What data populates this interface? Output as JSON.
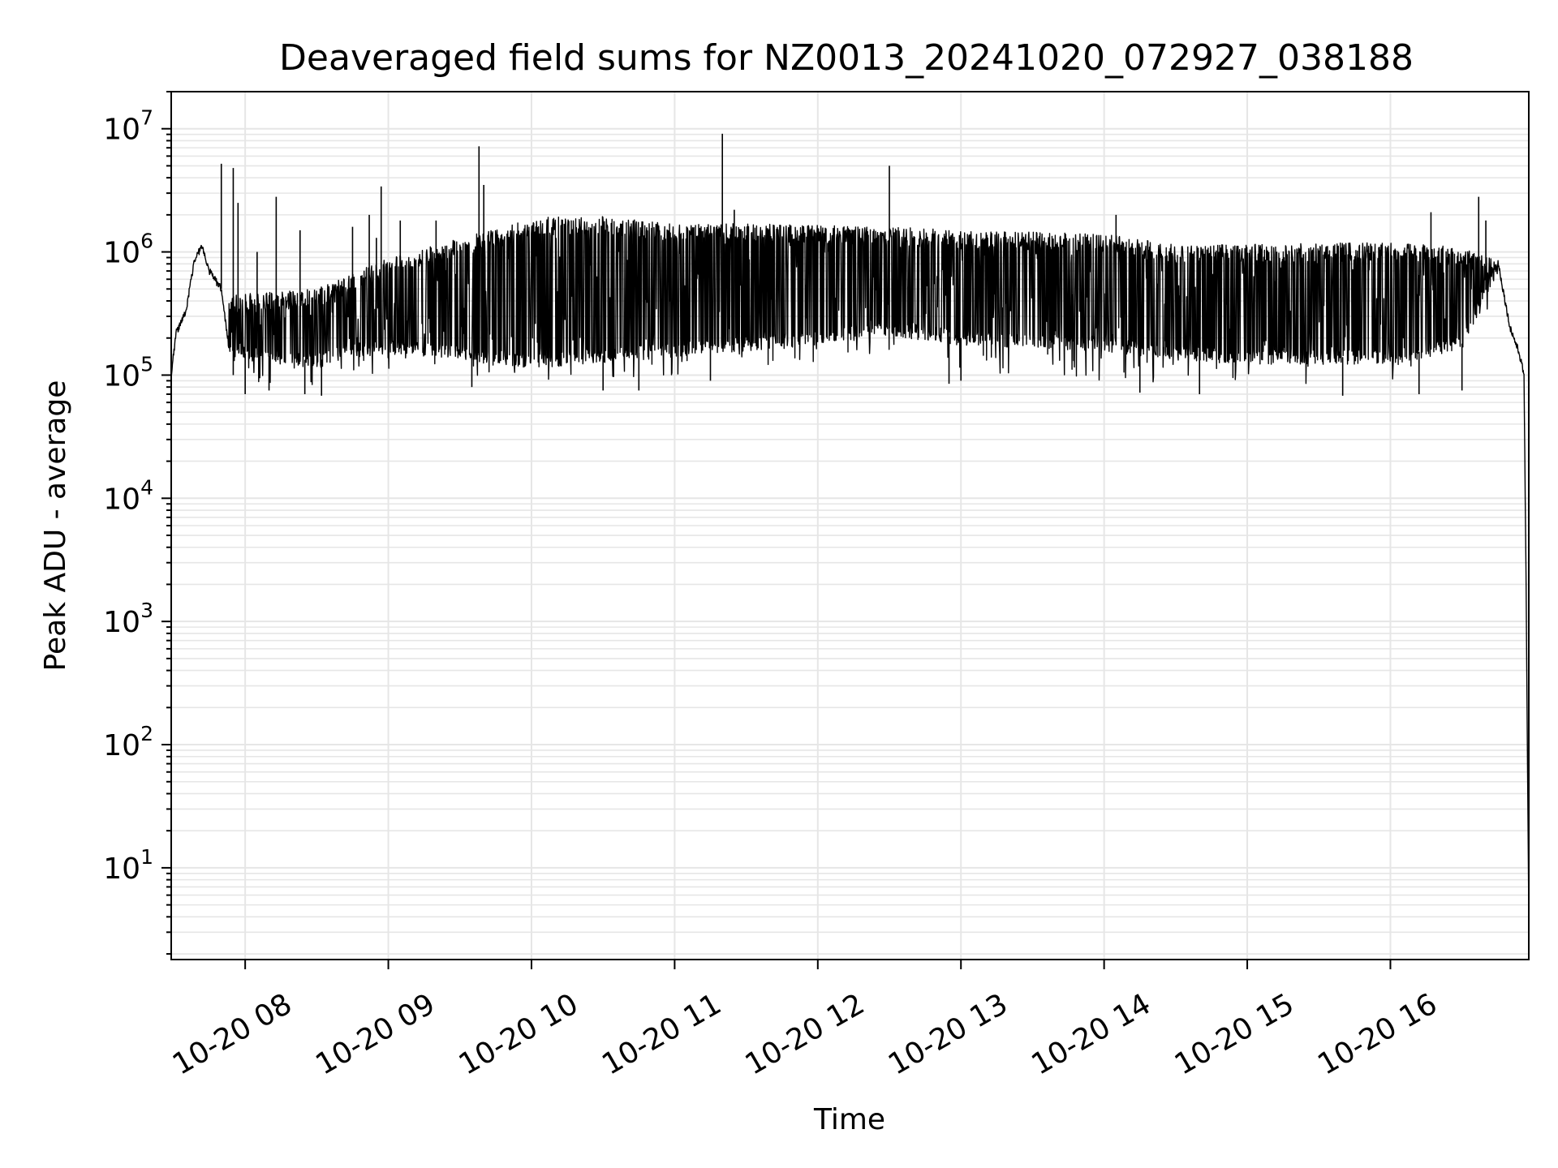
{
  "chart_data": {
    "type": "line",
    "title": "Deaveraged field sums for NZ0013_20241020_072927_038188",
    "xlabel": "Time",
    "ylabel": "Peak ADU - average",
    "yscale": "log",
    "grid": true,
    "line_color": "#000000",
    "grid_color": "#e6e6e6",
    "xlim": [
      "2024-10-20 07:29",
      "2024-10-20 16:58"
    ],
    "ylim": [
      1.8,
      20000000
    ],
    "x_ticks": [
      {
        "value": "2024-10-20 08:00",
        "label": "10-20 08"
      },
      {
        "value": "2024-10-20 09:00",
        "label": "10-20 09"
      },
      {
        "value": "2024-10-20 10:00",
        "label": "10-20 10"
      },
      {
        "value": "2024-10-20 11:00",
        "label": "10-20 11"
      },
      {
        "value": "2024-10-20 12:00",
        "label": "10-20 12"
      },
      {
        "value": "2024-10-20 13:00",
        "label": "10-20 13"
      },
      {
        "value": "2024-10-20 14:00",
        "label": "10-20 14"
      },
      {
        "value": "2024-10-20 15:00",
        "label": "10-20 15"
      },
      {
        "value": "2024-10-20 16:00",
        "label": "10-20 16"
      }
    ],
    "y_ticks": [
      {
        "value": 10,
        "base": "10",
        "exp": "1"
      },
      {
        "value": 100,
        "base": "10",
        "exp": "2"
      },
      {
        "value": 1000,
        "base": "10",
        "exp": "3"
      },
      {
        "value": 10000,
        "base": "10",
        "exp": "4"
      },
      {
        "value": 100000,
        "base": "10",
        "exp": "5"
      },
      {
        "value": 1000000,
        "base": "10",
        "exp": "6"
      },
      {
        "value": 10000000,
        "base": "10",
        "exp": "7"
      }
    ],
    "series": [
      {
        "baseline": [
          {
            "x": "2024-10-20 07:29",
            "y": 100000
          },
          {
            "x": "2024-10-20 07:31",
            "y": 220000
          },
          {
            "x": "2024-10-20 07:35",
            "y": 320000
          },
          {
            "x": "2024-10-20 07:39",
            "y": 900000
          },
          {
            "x": "2024-10-20 07:42",
            "y": 1100000
          },
          {
            "x": "2024-10-20 07:45",
            "y": 700000
          },
          {
            "x": "2024-10-20 07:50",
            "y": 500000
          },
          {
            "x": "2024-10-20 07:53",
            "y": 180000
          },
          {
            "x": "2024-10-20 08:00",
            "y": 150000
          },
          {
            "x": "2024-10-20 08:30",
            "y": 130000
          },
          {
            "x": "2024-10-20 08:45",
            "y": 160000
          },
          {
            "x": "2024-10-20 09:00",
            "y": 170000
          },
          {
            "x": "2024-10-20 09:30",
            "y": 150000
          },
          {
            "x": "2024-10-20 09:45",
            "y": 140000
          },
          {
            "x": "2024-10-20 10:00",
            "y": 130000
          },
          {
            "x": "2024-10-20 11:00",
            "y": 160000
          },
          {
            "x": "2024-10-20 11:30",
            "y": 180000
          },
          {
            "x": "2024-10-20 12:00",
            "y": 200000
          },
          {
            "x": "2024-10-20 12:30",
            "y": 240000
          },
          {
            "x": "2024-10-20 13:00",
            "y": 200000
          },
          {
            "x": "2024-10-20 14:00",
            "y": 180000
          },
          {
            "x": "2024-10-20 14:30",
            "y": 150000
          },
          {
            "x": "2024-10-20 15:00",
            "y": 140000
          },
          {
            "x": "2024-10-20 16:00",
            "y": 140000
          },
          {
            "x": "2024-10-20 16:30",
            "y": 180000
          },
          {
            "x": "2024-10-20 16:42",
            "y": 600000
          },
          {
            "x": "2024-10-20 16:45",
            "y": 850000
          },
          {
            "x": "2024-10-20 16:50",
            "y": 250000
          },
          {
            "x": "2024-10-20 16:54",
            "y": 150000
          },
          {
            "x": "2024-10-20 16:56",
            "y": 100000
          },
          {
            "x": "2024-10-20 16:57",
            "y": 1000
          },
          {
            "x": "2024-10-20 16:58",
            "y": 4
          }
        ],
        "upper_envelope": [
          {
            "x": "2024-10-20 07:29",
            "y": 300000
          },
          {
            "x": "2024-10-20 07:53",
            "y": 450000
          },
          {
            "x": "2024-10-20 08:30",
            "y": 500000
          },
          {
            "x": "2024-10-20 09:00",
            "y": 900000
          },
          {
            "x": "2024-10-20 09:30",
            "y": 1300000
          },
          {
            "x": "2024-10-20 09:50",
            "y": 1600000
          },
          {
            "x": "2024-10-20 10:00",
            "y": 1900000
          },
          {
            "x": "2024-10-20 10:30",
            "y": 1950000
          },
          {
            "x": "2024-10-20 11:00",
            "y": 1700000
          },
          {
            "x": "2024-10-20 11:30",
            "y": 1700000
          },
          {
            "x": "2024-10-20 12:00",
            "y": 1650000
          },
          {
            "x": "2024-10-20 12:30",
            "y": 1600000
          },
          {
            "x": "2024-10-20 13:00",
            "y": 1500000
          },
          {
            "x": "2024-10-20 14:00",
            "y": 1400000
          },
          {
            "x": "2024-10-20 14:30",
            "y": 1150000
          },
          {
            "x": "2024-10-20 15:00",
            "y": 1150000
          },
          {
            "x": "2024-10-20 16:00",
            "y": 1200000
          },
          {
            "x": "2024-10-20 16:30",
            "y": 1100000
          },
          {
            "x": "2024-10-20 16:45",
            "y": 850000
          }
        ],
        "lower_envelope": [
          {
            "x": "2024-10-20 07:29",
            "y": 200000
          },
          {
            "x": "2024-10-20 07:53",
            "y": 90000
          },
          {
            "x": "2024-10-20 08:30",
            "y": 80000
          },
          {
            "x": "2024-10-20 09:00",
            "y": 110000
          },
          {
            "x": "2024-10-20 09:30",
            "y": 100000
          },
          {
            "x": "2024-10-20 10:00",
            "y": 90000
          },
          {
            "x": "2024-10-20 11:00",
            "y": 100000
          },
          {
            "x": "2024-10-20 12:00",
            "y": 120000
          },
          {
            "x": "2024-10-20 12:30",
            "y": 150000
          },
          {
            "x": "2024-10-20 13:00",
            "y": 100000
          },
          {
            "x": "2024-10-20 14:00",
            "y": 90000
          },
          {
            "x": "2024-10-20 14:30",
            "y": 80000
          },
          {
            "x": "2024-10-20 15:00",
            "y": 80000
          },
          {
            "x": "2024-10-20 16:00",
            "y": 80000
          },
          {
            "x": "2024-10-20 16:45",
            "y": 400000
          }
        ],
        "spikes": [
          {
            "x": "2024-10-20 07:50",
            "y": 5200000
          },
          {
            "x": "2024-10-20 07:55",
            "y": 4800000
          },
          {
            "x": "2024-10-20 07:57",
            "y": 2500000
          },
          {
            "x": "2024-10-20 08:05",
            "y": 1000000
          },
          {
            "x": "2024-10-20 08:13",
            "y": 2800000
          },
          {
            "x": "2024-10-20 08:21",
            "y": 400000
          },
          {
            "x": "2024-10-20 08:23",
            "y": 1500000
          },
          {
            "x": "2024-10-20 08:45",
            "y": 1600000
          },
          {
            "x": "2024-10-20 08:52",
            "y": 2000000
          },
          {
            "x": "2024-10-20 08:55",
            "y": 1300000
          },
          {
            "x": "2024-10-20 08:57",
            "y": 3400000
          },
          {
            "x": "2024-10-20 09:05",
            "y": 1800000
          },
          {
            "x": "2024-10-20 09:20",
            "y": 1800000
          },
          {
            "x": "2024-10-20 09:38",
            "y": 7200000
          },
          {
            "x": "2024-10-20 09:40",
            "y": 3500000
          },
          {
            "x": "2024-10-20 11:20",
            "y": 9100000
          },
          {
            "x": "2024-10-20 11:25",
            "y": 2200000
          },
          {
            "x": "2024-10-20 12:30",
            "y": 5000000
          },
          {
            "x": "2024-10-20 14:05",
            "y": 2000000
          },
          {
            "x": "2024-10-20 16:17",
            "y": 2100000
          },
          {
            "x": "2024-10-20 16:37",
            "y": 2800000
          },
          {
            "x": "2024-10-20 16:40",
            "y": 1800000
          }
        ],
        "dips": [
          {
            "x": "2024-10-20 07:55",
            "y": 100000
          },
          {
            "x": "2024-10-20 08:00",
            "y": 70000
          },
          {
            "x": "2024-10-20 08:10",
            "y": 75000
          },
          {
            "x": "2024-10-20 08:25",
            "y": 70000
          },
          {
            "x": "2024-10-20 08:32",
            "y": 68000
          },
          {
            "x": "2024-10-20 09:35",
            "y": 80000
          },
          {
            "x": "2024-10-20 10:30",
            "y": 75000
          },
          {
            "x": "2024-10-20 10:45",
            "y": 75000
          },
          {
            "x": "2024-10-20 11:15",
            "y": 90000
          },
          {
            "x": "2024-10-20 12:55",
            "y": 85000
          },
          {
            "x": "2024-10-20 13:00",
            "y": 90000
          },
          {
            "x": "2024-10-20 14:15",
            "y": 72000
          },
          {
            "x": "2024-10-20 14:40",
            "y": 70000
          },
          {
            "x": "2024-10-20 15:40",
            "y": 68000
          },
          {
            "x": "2024-10-20 16:12",
            "y": 70000
          },
          {
            "x": "2024-10-20 16:30",
            "y": 75000
          }
        ]
      }
    ]
  }
}
